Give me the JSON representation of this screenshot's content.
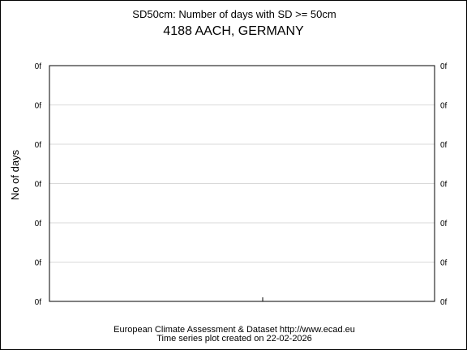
{
  "chart_data": {
    "type": "line",
    "title": "SD50cm: Number of days with SD >= 50cm",
    "subtitle": "4188 AACH, GERMANY",
    "ylabel": "No of days",
    "xlabel": "",
    "y_tick_labels": [
      "0f",
      "0f",
      "0f",
      "0f",
      "0f",
      "0f",
      "0f"
    ],
    "grid": true,
    "series": [],
    "footer_line1": "European Climate Assessment & Dataset  http://www.ecad.eu",
    "footer_line2": "Time series plot created on 22-02-2026"
  }
}
